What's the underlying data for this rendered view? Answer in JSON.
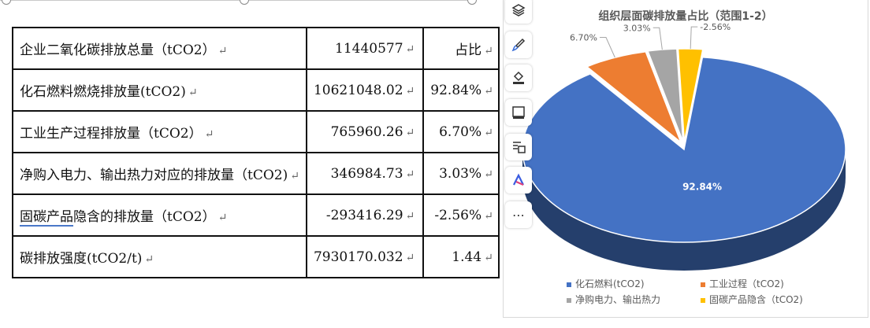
{
  "table": {
    "rows": [
      {
        "label": "企业二氧化碳排放总量（tCO2）",
        "value": "11440577",
        "share": "占比"
      },
      {
        "label": "化石燃料燃烧排放量(tCO2)",
        "value": "10621048.02",
        "share": "92.84%"
      },
      {
        "label": "工业生产过程排放量（tCO2）",
        "value": "765960.26",
        "share": "6.70%"
      },
      {
        "label": "净购入电力、输出热力对应的排放量（tCO2)",
        "value": "346984.73",
        "share": "3.03%"
      },
      {
        "label": "固碳产品隐含的排放量（tCO2）",
        "value": "-293416.29",
        "share": "-2.56%"
      },
      {
        "label": "碳排放强度(tCO2/t)",
        "value": "7930170.032",
        "share": "1.44"
      }
    ]
  },
  "toolbar": {
    "icons": [
      "layers-icon",
      "brush-icon",
      "paint-bucket-icon",
      "frame-icon",
      "alt-text-icon",
      "ai-logo-icon",
      "more-icon"
    ],
    "more_label": "⋯"
  },
  "chart_data": {
    "type": "pie",
    "title": "组织层面碳排放量占比（范围1-2）",
    "slices": [
      {
        "name": "化石燃料(tCO2)",
        "value": 92.84,
        "label": "92.84%",
        "color": "#4472C4"
      },
      {
        "name": "工业过程（tCO2)",
        "value": 6.7,
        "label": "6.70%",
        "color": "#ED7D31"
      },
      {
        "name": "净购电力、输出热力",
        "value": 3.03,
        "label": "3.03%",
        "color": "#A5A5A5"
      },
      {
        "name": "固碳产品隐含（tCO2)",
        "value": 2.56,
        "label": "-2.56%",
        "color": "#FFC000"
      }
    ],
    "legend_position": "bottom",
    "three_d": true
  }
}
